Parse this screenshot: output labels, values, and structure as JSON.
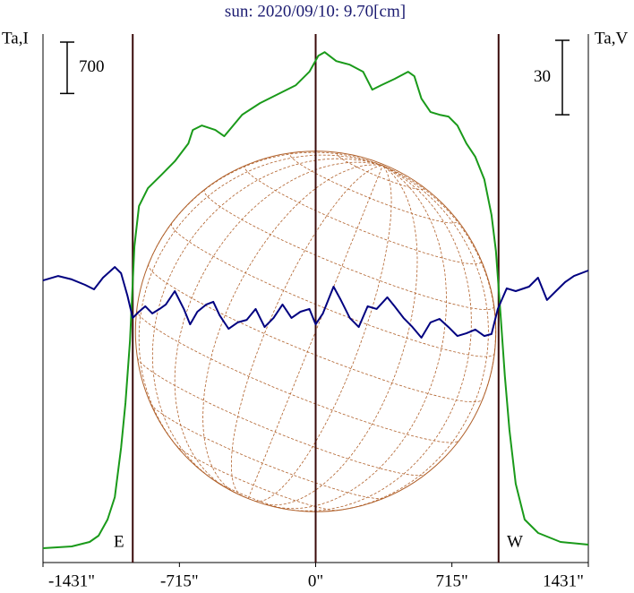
{
  "chart_data": {
    "type": "line",
    "title": "sun: 2020/09/10: 9.70[cm]",
    "ylabel": "Ta,I",
    "y2label": "Ta,V",
    "annotations": [
      "E",
      "W"
    ],
    "scale_i": 700,
    "scale_v": 30,
    "solar_radius": 960,
    "xlim": [
      -1431,
      1431
    ],
    "xticks": [
      {
        "value": -1431,
        "label": "-1431\""
      },
      {
        "value": -715,
        "label": "-715\""
      },
      {
        "value": 0,
        "label": "0\""
      },
      {
        "value": 715,
        "label": "715\""
      },
      {
        "value": 1431,
        "label": "1431\""
      }
    ],
    "ylim": [
      0,
      7200
    ],
    "y2lim": [
      -106.5,
      106.5
    ],
    "series": [
      {
        "name": "I",
        "color": "#1a9a1a",
        "x": [
          -1431,
          -1280,
          -1186,
          -1139,
          -1092,
          -1054,
          -1021,
          -998,
          -974,
          -951,
          -927,
          -880,
          -809,
          -739,
          -668,
          -645,
          -598,
          -527,
          -480,
          -433,
          -386,
          -292,
          -198,
          -151,
          -104,
          -33,
          14,
          47,
          108,
          179,
          249,
          297,
          344,
          414,
          485,
          518,
          555,
          603,
          650,
          697,
          744,
          791,
          838,
          885,
          923,
          946,
          970,
          993,
          1017,
          1050,
          1097,
          1168,
          1285,
          1431
        ],
        "values": [
          195,
          220,
          281,
          366,
          586,
          891,
          1562,
          2172,
          3026,
          4307,
          4856,
          5100,
          5283,
          5466,
          5710,
          5893,
          5954,
          5893,
          5808,
          5954,
          6100,
          6259,
          6381,
          6442,
          6503,
          6686,
          6905,
          6954,
          6832,
          6783,
          6686,
          6442,
          6503,
          6588,
          6686,
          6625,
          6320,
          6137,
          6100,
          6076,
          5954,
          5710,
          5527,
          5222,
          4734,
          4246,
          3392,
          2538,
          1806,
          1074,
          586,
          403,
          281,
          244
        ]
      },
      {
        "name": "V",
        "color": "#000080",
        "axis": "y2",
        "x": [
          -1431,
          -1351,
          -1280,
          -1210,
          -1163,
          -1116,
          -1054,
          -1021,
          -988,
          -960,
          -927,
          -894,
          -857,
          -819,
          -786,
          -739,
          -692,
          -659,
          -621,
          -574,
          -537,
          -504,
          -457,
          -409,
          -362,
          -315,
          -268,
          -221,
          -174,
          -127,
          -80,
          -33,
          0,
          38,
          94,
          132,
          179,
          226,
          273,
          320,
          376,
          414,
          461,
          508,
          555,
          603,
          650,
          697,
          744,
          791,
          838,
          885,
          923,
          956,
          1003,
          1050,
          1120,
          1167,
          1214,
          1261,
          1309,
          1356,
          1431
        ],
        "values": [
          7.2,
          9.0,
          7.6,
          5.4,
          3.6,
          8.3,
          12.6,
          10.1,
          1.1,
          -7.9,
          -5.4,
          -3.2,
          -6.1,
          -4.3,
          -2.5,
          2.9,
          -4.3,
          -10.5,
          -5.4,
          -2.5,
          -1.4,
          -6.9,
          -12.3,
          -9.7,
          -8.7,
          -4.3,
          -11.6,
          -7.9,
          -2.5,
          -7.9,
          -5.4,
          -4.3,
          -10.5,
          -6.1,
          4.7,
          -0.7,
          -7.9,
          -11.6,
          -3.2,
          -4.3,
          0.4,
          -3.2,
          -7.9,
          -11.6,
          -15.9,
          -9.7,
          -8.3,
          -11.6,
          -15.2,
          -14.1,
          -12.6,
          -15.2,
          -14.4,
          -4.3,
          4.0,
          2.9,
          4.7,
          8.3,
          -0.7,
          2.9,
          6.5,
          9.0,
          11.2
        ]
      }
    ]
  }
}
